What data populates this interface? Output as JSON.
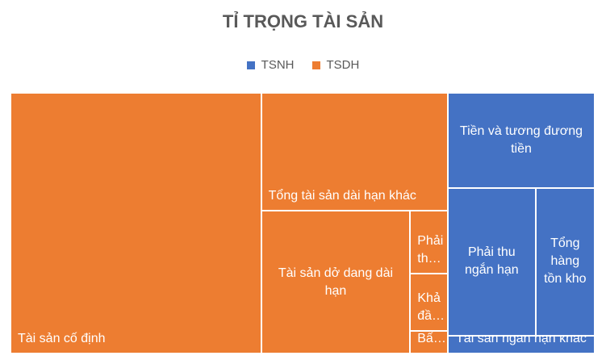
{
  "chart_data": {
    "type": "treemap",
    "title": "TỈ TRỌNG TÀI SẢN",
    "series": [
      {
        "name": "TSNH",
        "color": "#4472c4",
        "categories": [
          "Tiền và tương đương tiền",
          "Phải thu ngắn hạn",
          "Tổng hàng tồn kho",
          "Tài sản ngắn hạn khác"
        ],
        "values": [
          21.3,
          19.7,
          13.3,
          4.0
        ]
      },
      {
        "name": "TSDH",
        "color": "#ed7d31",
        "categories": [
          "Tài sản cố định",
          "Tổng tài sản dài hạn khác",
          "Tài sản dở dang dài hạn",
          "Phải th…",
          "Khả đầ…",
          "Bấ…"
        ],
        "values": [
          99.5,
          33.5,
          32.4,
          3.6,
          3.3,
          1.3
        ]
      }
    ],
    "legend": "top"
  }
}
